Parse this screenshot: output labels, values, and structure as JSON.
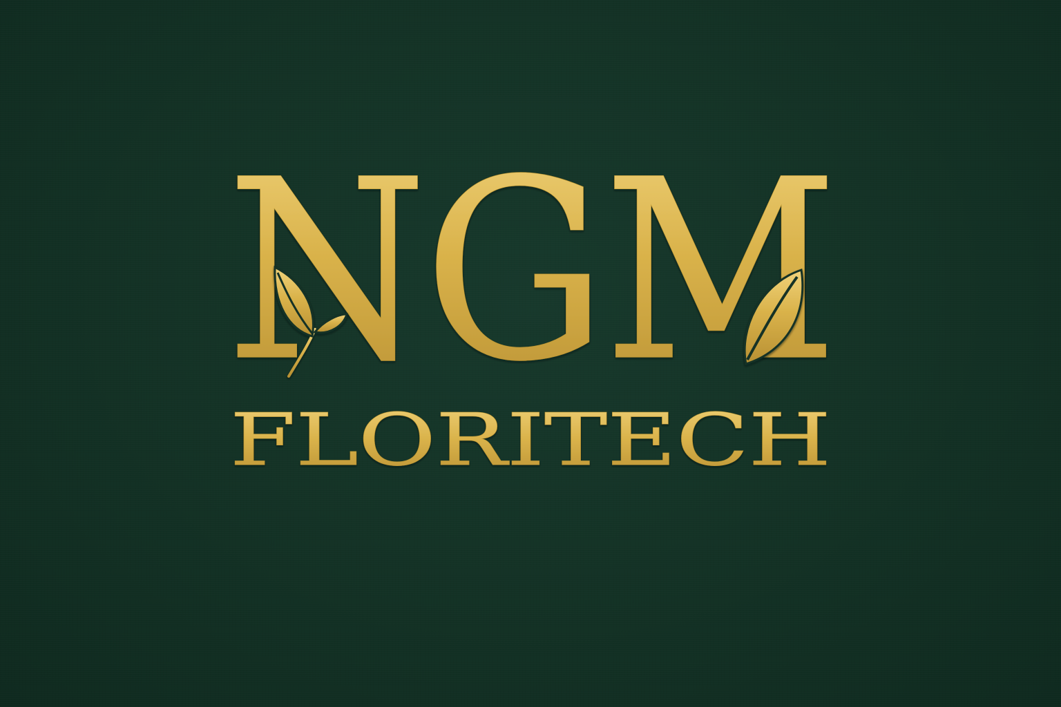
{
  "brand": {
    "monogram": "NGM",
    "wordmark": "FLORITECH"
  },
  "colors": {
    "background": "#143326",
    "gold": "#d9b24a",
    "gold_highlight": "#f0d27a",
    "gold_shadow": "#a8842a"
  },
  "icons": [
    "leaf-sprig-icon",
    "leaf-icon"
  ]
}
